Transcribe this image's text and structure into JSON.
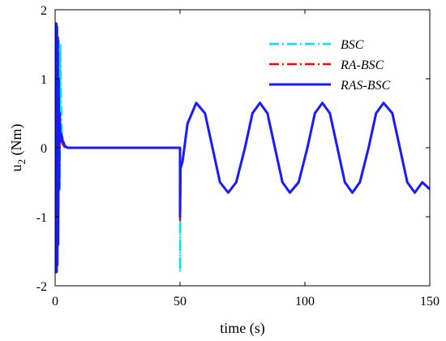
{
  "chart_data": {
    "type": "line",
    "xlabel": "time (s)",
    "ylabel": "u",
    "ylabel_sub": "2",
    "ylabel_unit": " (Nm)",
    "xlim": [
      0,
      150
    ],
    "ylim": [
      -2,
      2
    ],
    "xticks": [
      "0",
      "50",
      "100",
      "150"
    ],
    "yticks": [
      "-2",
      "-1",
      "0",
      "1",
      "2"
    ],
    "grid": false,
    "legend_position": "top-right",
    "series": [
      {
        "name": "BSC",
        "color": "#00e5ff",
        "style": "dash-dot",
        "points": [
          [
            0,
            0
          ],
          [
            0.3,
            1.55
          ],
          [
            0.6,
            -1.75
          ],
          [
            0.9,
            1.6
          ],
          [
            1.2,
            -1.2
          ],
          [
            1.5,
            1.55
          ],
          [
            1.8,
            -0.6
          ],
          [
            2.1,
            1.5
          ],
          [
            2.5,
            0.3
          ],
          [
            3,
            0.15
          ],
          [
            4,
            0.02
          ],
          [
            5,
            0
          ],
          [
            50,
            0
          ],
          [
            50,
            -1.8
          ],
          [
            50.2,
            -0.3
          ],
          [
            51,
            -0.2
          ],
          [
            53,
            0.35
          ],
          [
            56.5,
            0.65
          ],
          [
            60,
            0.5
          ],
          [
            63,
            0
          ],
          [
            66,
            -0.5
          ],
          [
            69.3,
            -0.65
          ],
          [
            72.5,
            -0.5
          ],
          [
            76,
            0
          ],
          [
            79,
            0.5
          ],
          [
            82,
            0.65
          ],
          [
            85,
            0.5
          ],
          [
            88,
            0
          ],
          [
            91,
            -0.5
          ],
          [
            94,
            -0.65
          ],
          [
            97.5,
            -0.5
          ],
          [
            101,
            0
          ],
          [
            104,
            0.5
          ],
          [
            107,
            0.65
          ],
          [
            110,
            0.5
          ],
          [
            113,
            0
          ],
          [
            116,
            -0.5
          ],
          [
            119,
            -0.65
          ],
          [
            122,
            -0.5
          ],
          [
            125.5,
            0
          ],
          [
            128.5,
            0.5
          ],
          [
            131.5,
            0.65
          ],
          [
            135,
            0.5
          ],
          [
            138,
            0
          ],
          [
            141,
            -0.5
          ],
          [
            144,
            -0.65
          ],
          [
            147,
            -0.5
          ],
          [
            150,
            -0.6
          ]
        ]
      },
      {
        "name": "RA-BSC",
        "color": "#ff0000",
        "style": "dash-dot",
        "points": [
          [
            0,
            0
          ],
          [
            0.2,
            1.75
          ],
          [
            0.4,
            -1.75
          ],
          [
            0.6,
            1.7
          ],
          [
            0.8,
            -1.5
          ],
          [
            1,
            1.2
          ],
          [
            1.3,
            -0.85
          ],
          [
            1.6,
            0.5
          ],
          [
            2,
            0.15
          ],
          [
            3,
            0.05
          ],
          [
            4,
            0
          ],
          [
            50,
            0
          ],
          [
            50,
            -1.05
          ],
          [
            50.2,
            -0.3
          ],
          [
            51,
            -0.2
          ],
          [
            53,
            0.35
          ],
          [
            56.5,
            0.65
          ],
          [
            60,
            0.5
          ],
          [
            63,
            0
          ],
          [
            66,
            -0.5
          ],
          [
            69.3,
            -0.65
          ],
          [
            72.5,
            -0.5
          ],
          [
            76,
            0
          ],
          [
            79,
            0.5
          ],
          [
            82,
            0.65
          ],
          [
            85,
            0.5
          ],
          [
            88,
            0
          ],
          [
            91,
            -0.5
          ],
          [
            94,
            -0.65
          ],
          [
            97.5,
            -0.5
          ],
          [
            101,
            0
          ],
          [
            104,
            0.5
          ],
          [
            107,
            0.65
          ],
          [
            110,
            0.5
          ],
          [
            113,
            0
          ],
          [
            116,
            -0.5
          ],
          [
            119,
            -0.65
          ],
          [
            122,
            -0.5
          ],
          [
            125.5,
            0
          ],
          [
            128.5,
            0.5
          ],
          [
            131.5,
            0.65
          ],
          [
            135,
            0.5
          ],
          [
            138,
            0
          ],
          [
            141,
            -0.5
          ],
          [
            144,
            -0.65
          ],
          [
            147,
            -0.5
          ],
          [
            150,
            -0.6
          ]
        ]
      },
      {
        "name": "RAS-BSC",
        "color": "#1a1aff",
        "style": "solid",
        "points": [
          [
            0,
            0
          ],
          [
            0.15,
            1.8
          ],
          [
            0.3,
            -1.8
          ],
          [
            0.45,
            1.8
          ],
          [
            0.6,
            -1.8
          ],
          [
            0.75,
            1.75
          ],
          [
            0.9,
            -1.7
          ],
          [
            1.05,
            1.6
          ],
          [
            1.2,
            -1.4
          ],
          [
            1.4,
            1.0
          ],
          [
            1.6,
            -0.6
          ],
          [
            1.8,
            0.5
          ],
          [
            2.1,
            0.1
          ],
          [
            2.5,
            0.2
          ],
          [
            3,
            0.1
          ],
          [
            4,
            0.02
          ],
          [
            5,
            0
          ],
          [
            50,
            0
          ],
          [
            50,
            -1.0
          ],
          [
            50.2,
            -0.3
          ],
          [
            51,
            -0.2
          ],
          [
            53,
            0.35
          ],
          [
            56.5,
            0.65
          ],
          [
            60,
            0.5
          ],
          [
            63,
            0
          ],
          [
            66,
            -0.5
          ],
          [
            69.3,
            -0.65
          ],
          [
            72.5,
            -0.5
          ],
          [
            76,
            0
          ],
          [
            79,
            0.5
          ],
          [
            82,
            0.65
          ],
          [
            85,
            0.5
          ],
          [
            88,
            0
          ],
          [
            91,
            -0.5
          ],
          [
            94,
            -0.65
          ],
          [
            97.5,
            -0.5
          ],
          [
            101,
            0
          ],
          [
            104,
            0.5
          ],
          [
            107,
            0.65
          ],
          [
            110,
            0.5
          ],
          [
            113,
            0
          ],
          [
            116,
            -0.5
          ],
          [
            119,
            -0.65
          ],
          [
            122,
            -0.5
          ],
          [
            125.5,
            0
          ],
          [
            128.5,
            0.5
          ],
          [
            131.5,
            0.65
          ],
          [
            135,
            0.5
          ],
          [
            138,
            0
          ],
          [
            141,
            -0.5
          ],
          [
            144,
            -0.65
          ],
          [
            147,
            -0.5
          ],
          [
            150,
            -0.6
          ]
        ]
      }
    ]
  }
}
